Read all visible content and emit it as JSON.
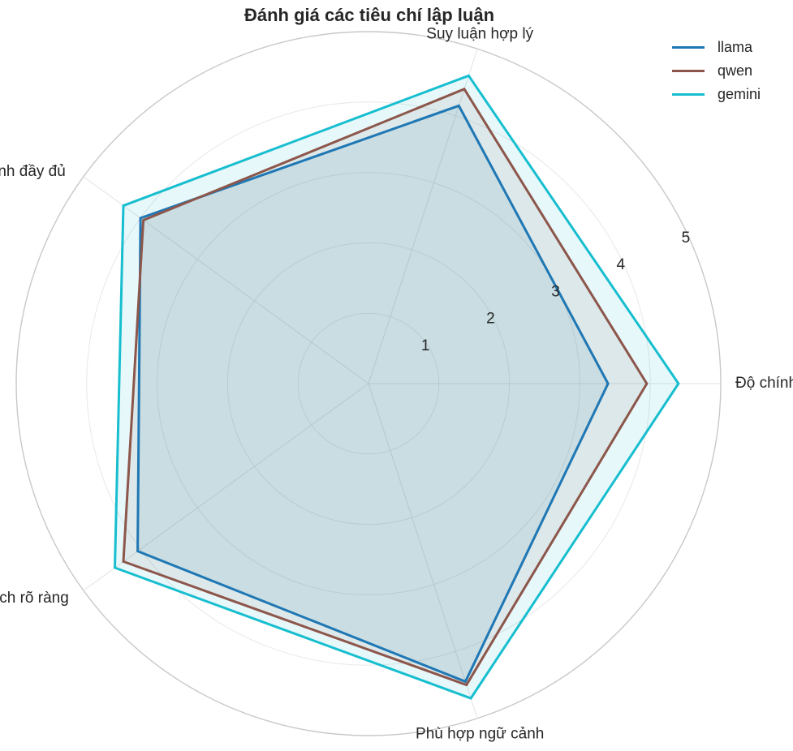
{
  "chart_data": {
    "type": "radar",
    "title": "Đánh giá các tiêu chí lập luận",
    "axes": [
      "Độ chính xác",
      "Suy luận hợp lý",
      "Tính đầy đủ",
      "Giải thích rõ ràng",
      "Phù hợp ngữ cảnh"
    ],
    "radial_ticks": [
      1,
      2,
      3,
      4,
      5
    ],
    "rmax": 5,
    "grid": true,
    "legend_position": "top-right",
    "series": [
      {
        "name": "llama",
        "color": "#1f77b4",
        "values": [
          3.4,
          4.15,
          4.0,
          4.05,
          4.45
        ]
      },
      {
        "name": "qwen",
        "color": "#8c564b",
        "values": [
          3.95,
          4.4,
          3.95,
          4.3,
          4.5
        ]
      },
      {
        "name": "gemini",
        "color": "#17becf",
        "values": [
          4.4,
          4.6,
          4.3,
          4.45,
          4.7
        ]
      }
    ]
  }
}
